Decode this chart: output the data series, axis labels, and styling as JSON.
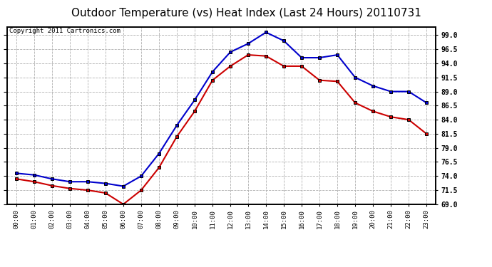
{
  "title": "Outdoor Temperature (vs) Heat Index (Last 24 Hours) 20110731",
  "copyright": "Copyright 2011 Cartronics.com",
  "hours": [
    "00:00",
    "01:00",
    "02:00",
    "03:00",
    "04:00",
    "05:00",
    "06:00",
    "07:00",
    "08:00",
    "09:00",
    "10:00",
    "11:00",
    "12:00",
    "13:00",
    "14:00",
    "15:00",
    "16:00",
    "17:00",
    "18:00",
    "19:00",
    "20:00",
    "21:00",
    "22:00",
    "23:00"
  ],
  "blue_temp": [
    74.5,
    74.2,
    73.5,
    73.0,
    73.0,
    72.7,
    72.2,
    74.0,
    78.0,
    83.0,
    87.5,
    92.5,
    96.0,
    97.5,
    99.5,
    98.0,
    95.0,
    95.0,
    95.5,
    91.5,
    90.0,
    89.0,
    89.0,
    87.0
  ],
  "red_heat": [
    73.5,
    73.0,
    72.3,
    71.8,
    71.5,
    71.0,
    69.0,
    71.5,
    75.5,
    81.0,
    85.5,
    91.0,
    93.5,
    95.5,
    95.3,
    93.5,
    93.5,
    91.0,
    90.8,
    87.0,
    85.5,
    84.5,
    84.0,
    81.5
  ],
  "ylim": [
    69.0,
    100.5
  ],
  "yticks": [
    69.0,
    71.5,
    74.0,
    76.5,
    79.0,
    81.5,
    84.0,
    86.5,
    89.0,
    91.5,
    94.0,
    96.5,
    99.0
  ],
  "background_color": "#ffffff",
  "plot_bg_color": "#ffffff",
  "grid_color": "#b0b0b0",
  "blue_color": "#0000cc",
  "red_color": "#cc0000",
  "title_fontsize": 11,
  "copyright_fontsize": 6.5
}
